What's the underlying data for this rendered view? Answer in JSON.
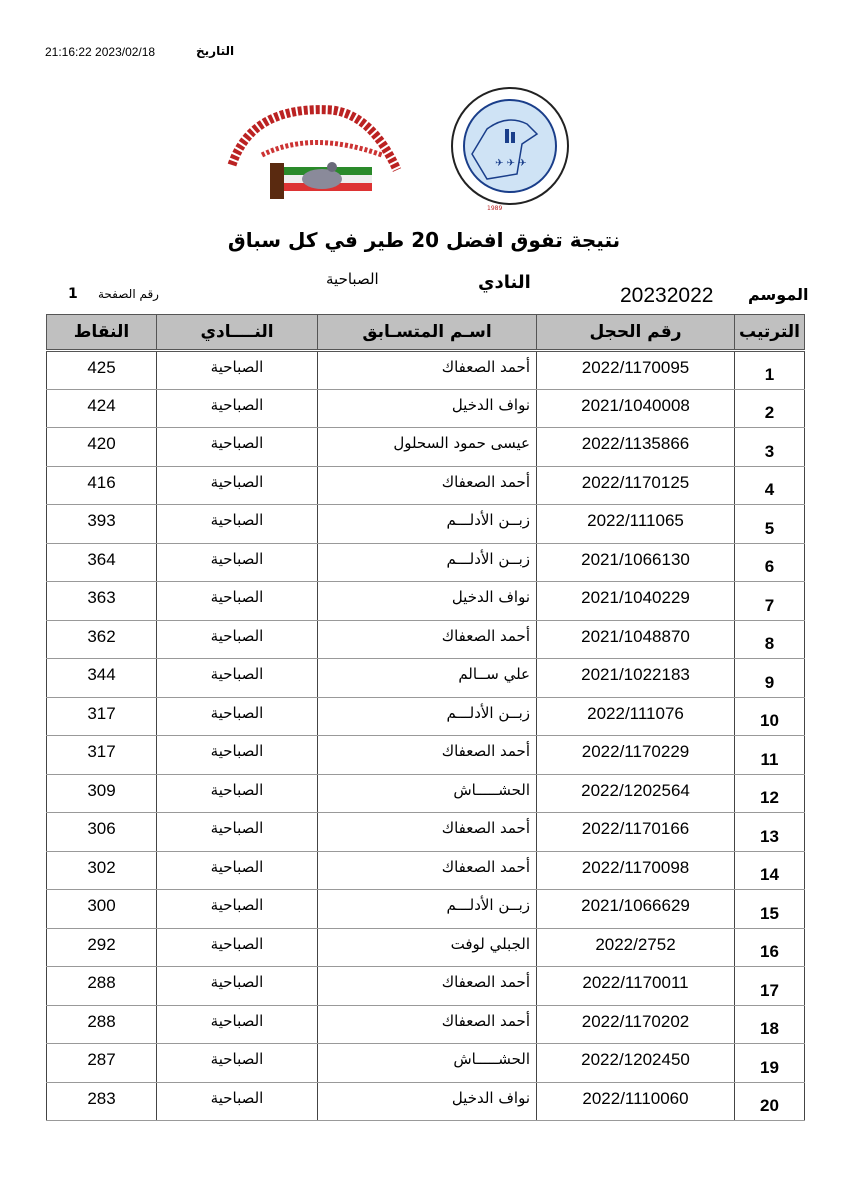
{
  "header": {
    "date_label": "التاريخ",
    "date_value": "21:16:22 2023/02/18",
    "logos": {
      "club_logo": {
        "text_ar": "النادي الكويتي لسباق الحمام الزاجل",
        "text_en": "Kuwait Racing Pigeon Club"
      },
      "federation_logo": {
        "text_ar": "الاتحاد الكويتي لسباق حمام الزاجل",
        "text_en": "Kuwait Federation For Racing Pigeons",
        "year": "1989"
      }
    },
    "title": "نتيجة تفوق  افضل 20  طير في كل سباق",
    "season_label": "الموسم",
    "season_value": "20232022",
    "club_label": "النادي",
    "club_value": "الصباحية",
    "page_label": "رقم الصفحة",
    "page_number": "1"
  },
  "table": {
    "columns": [
      "الترتيب",
      "رقم الحجل",
      "اسـم المتسـابق",
      "النــــادي",
      "النقاط"
    ],
    "rows": [
      {
        "rank": "1",
        "ring": "2022/1170095",
        "name": "أحمد الصعفاك",
        "club": "الصباحية",
        "points": "425"
      },
      {
        "rank": "2",
        "ring": "2021/1040008",
        "name": "نواف الدخيل",
        "club": "الصباحية",
        "points": "424"
      },
      {
        "rank": "3",
        "ring": "2022/1135866",
        "name": "عيسى حمود السحلول",
        "club": "الصباحية",
        "points": "420"
      },
      {
        "rank": "4",
        "ring": "2022/1170125",
        "name": "أحمد الصعفاك",
        "club": "الصباحية",
        "points": "416"
      },
      {
        "rank": "5",
        "ring": "2022/111065",
        "name": "زبــن الأدلـــم",
        "club": "الصباحية",
        "points": "393"
      },
      {
        "rank": "6",
        "ring": "2021/1066130",
        "name": "زبــن الأدلـــم",
        "club": "الصباحية",
        "points": "364"
      },
      {
        "rank": "7",
        "ring": "2021/1040229",
        "name": "نواف الدخيل",
        "club": "الصباحية",
        "points": "363"
      },
      {
        "rank": "8",
        "ring": "2021/1048870",
        "name": "أحمد الصعفاك",
        "club": "الصباحية",
        "points": "362"
      },
      {
        "rank": "9",
        "ring": "2021/1022183",
        "name": "علي ســالم",
        "club": "الصباحية",
        "points": "344"
      },
      {
        "rank": "10",
        "ring": "2022/111076",
        "name": "زبــن الأدلـــم",
        "club": "الصباحية",
        "points": "317"
      },
      {
        "rank": "11",
        "ring": "2022/1170229",
        "name": "أحمد الصعفاك",
        "club": "الصباحية",
        "points": "317"
      },
      {
        "rank": "12",
        "ring": "2022/1202564",
        "name": "الحشـــــاش",
        "club": "الصباحية",
        "points": "309"
      },
      {
        "rank": "13",
        "ring": "2022/1170166",
        "name": "أحمد الصعفاك",
        "club": "الصباحية",
        "points": "306"
      },
      {
        "rank": "14",
        "ring": "2022/1170098",
        "name": "أحمد الصعفاك",
        "club": "الصباحية",
        "points": "302"
      },
      {
        "rank": "15",
        "ring": "2021/1066629",
        "name": "زبــن الأدلـــم",
        "club": "الصباحية",
        "points": "300"
      },
      {
        "rank": "16",
        "ring": "2022/2752",
        "name": "الجبلي لوفت",
        "club": "الصباحية",
        "points": "292"
      },
      {
        "rank": "17",
        "ring": "2022/1170011",
        "name": "أحمد الصعفاك",
        "club": "الصباحية",
        "points": "288"
      },
      {
        "rank": "18",
        "ring": "2022/1170202",
        "name": "أحمد الصعفاك",
        "club": "الصباحية",
        "points": "288"
      },
      {
        "rank": "19",
        "ring": "2022/1202450",
        "name": "الحشـــــاش",
        "club": "الصباحية",
        "points": "287"
      },
      {
        "rank": "20",
        "ring": "2022/1110060",
        "name": "نواف الدخيل",
        "club": "الصباحية",
        "points": "283"
      }
    ]
  }
}
